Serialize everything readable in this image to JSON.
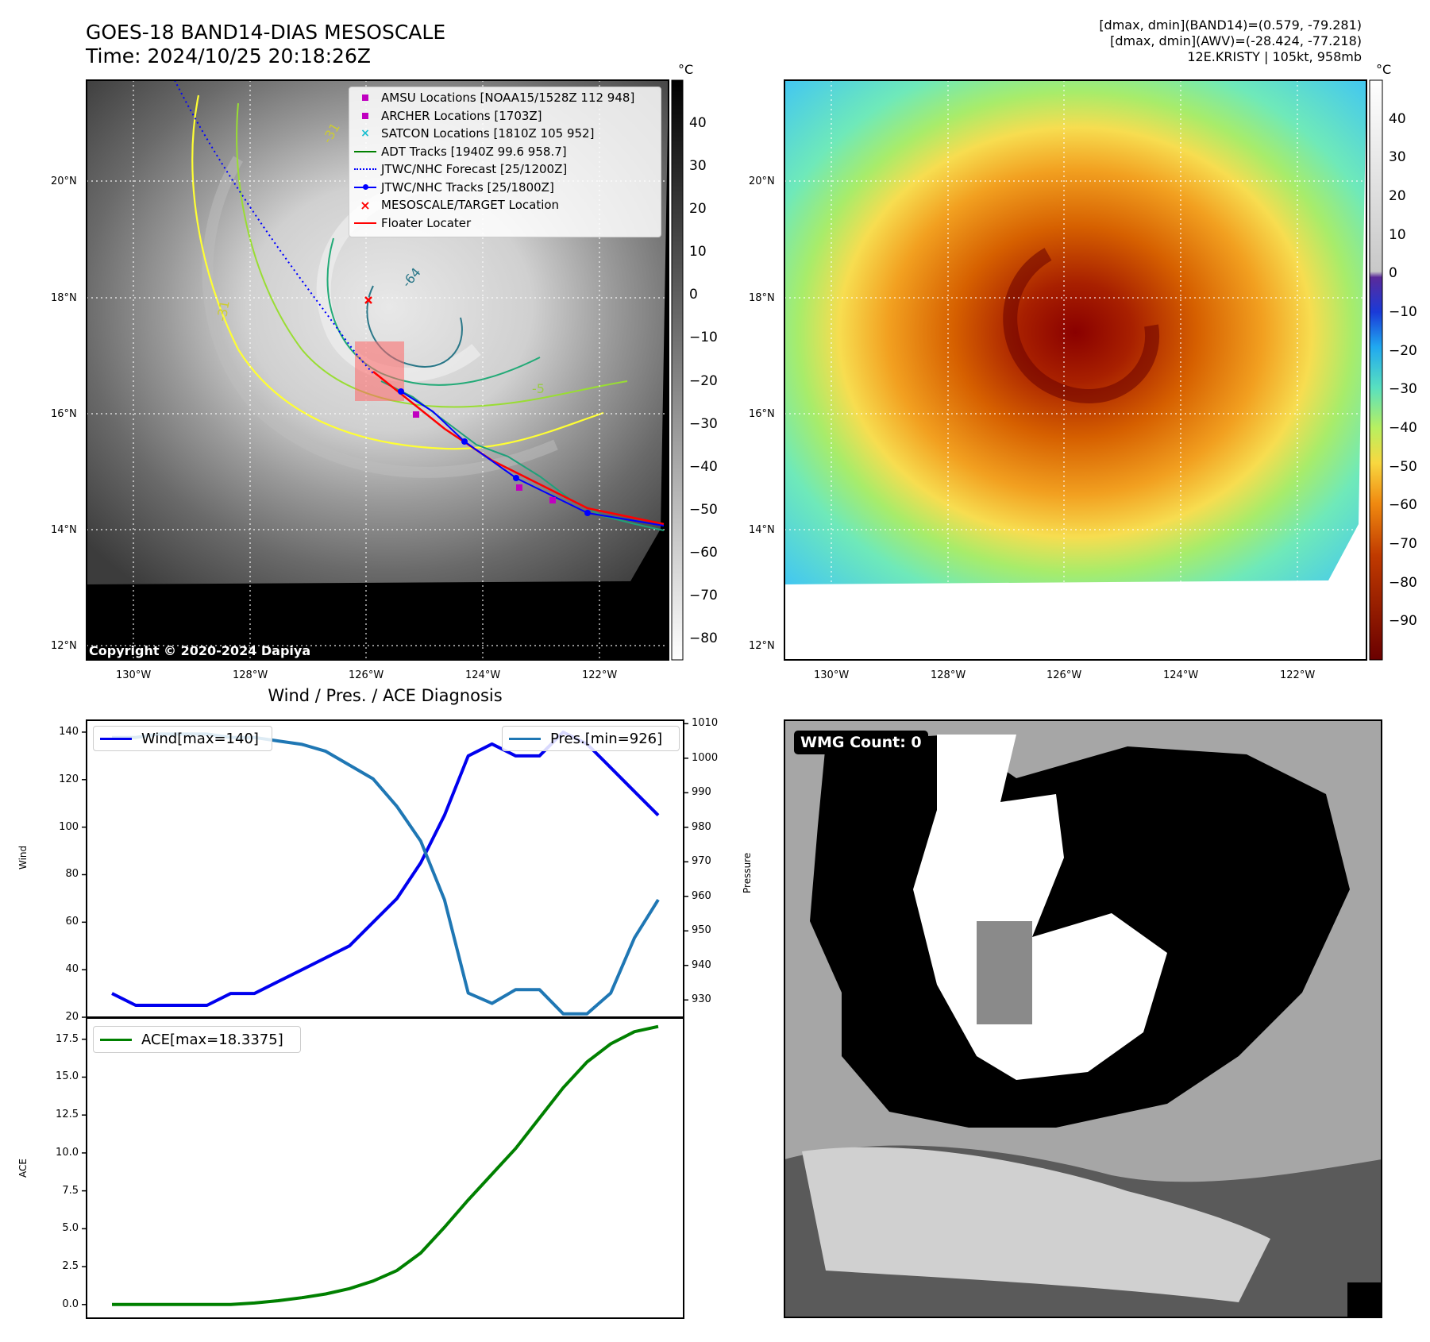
{
  "header": {
    "title_line1": "GOES-18 BAND14-DIAS MESOSCALE",
    "title_line2": "Time: 2024/10/25 20:18:26Z",
    "info_line1": "[dmax, dmin](BAND14)=(0.579, -79.281)",
    "info_line2": "[dmax, dmin](AWV)=(-28.424, -77.218)",
    "info_line3": "12E.KRISTY | 105kt, 958mb"
  },
  "map": {
    "lat_labels": [
      "20°N",
      "18°N",
      "16°N",
      "14°N",
      "12°N"
    ],
    "lon_labels": [
      "130°W",
      "128°W",
      "126°W",
      "124°W",
      "122°W"
    ],
    "copyright": "Copyright © 2020-2024 Dapiya",
    "contour_labels": [
      "-31",
      "-64",
      "-31",
      "-31",
      "-5"
    ],
    "legend": [
      {
        "label": "AMSU Locations [NOAA15/1528Z 112 948]",
        "symbol": "square",
        "color": "#c000c0"
      },
      {
        "label": "ARCHER Locations [1703Z]",
        "symbol": "square",
        "color": "#c000c0"
      },
      {
        "label": "SATCON Locations [1810Z 105 952]",
        "symbol": "x",
        "color": "#17becf"
      },
      {
        "label": "ADT Tracks [1940Z 99.6 958.7]",
        "symbol": "line",
        "color": "#008000"
      },
      {
        "label": "JTWC/NHC Forecast [25/1200Z]",
        "symbol": "dotted",
        "color": "#0000ff"
      },
      {
        "label": "JTWC/NHC Tracks [25/1800Z]",
        "symbol": "line-dot",
        "color": "#0000ff"
      },
      {
        "label": "MESOSCALE/TARGET Location",
        "symbol": "x",
        "color": "#ff0000"
      },
      {
        "label": "Floater Locater",
        "symbol": "line",
        "color": "#ff0000"
      }
    ]
  },
  "colorbar_gray": {
    "unit": "°C",
    "ticks": [
      "40",
      "30",
      "20",
      "10",
      "0",
      "−10",
      "−20",
      "−30",
      "−40",
      "−50",
      "−60",
      "−70",
      "−80"
    ]
  },
  "colorbar_color": {
    "unit": "°C",
    "ticks": [
      "40",
      "30",
      "20",
      "10",
      "0",
      "−10",
      "−20",
      "−30",
      "−40",
      "−50",
      "−60",
      "−70",
      "−80",
      "−90"
    ]
  },
  "wmg": {
    "label": "WMG Count: 0"
  },
  "chart_data": [
    {
      "type": "line",
      "title": "Wind / Pres. / ACE Diagnosis",
      "ylabel": "Wind",
      "ylabel_right": "Pressure",
      "ylim": [
        20,
        145
      ],
      "ylim_right": [
        925,
        1011
      ],
      "yticks": [
        20,
        40,
        60,
        80,
        100,
        120,
        140
      ],
      "yticks_right": [
        930,
        940,
        950,
        960,
        970,
        980,
        990,
        1000,
        1010
      ],
      "x": [
        0,
        1,
        2,
        3,
        4,
        5,
        6,
        7,
        8,
        9,
        10,
        11,
        12,
        13,
        14,
        15,
        16,
        17,
        18,
        19,
        20,
        21,
        22,
        23
      ],
      "series": [
        {
          "name": "Wind[max=140]",
          "color": "#0000ee",
          "axis": "left",
          "values": [
            30,
            25,
            25,
            25,
            25,
            30,
            30,
            35,
            40,
            45,
            50,
            60,
            70,
            85,
            105,
            130,
            135,
            130,
            130,
            140,
            135,
            125,
            115,
            105
          ]
        },
        {
          "name": "Pres.[min=926]",
          "color": "#1f77b4",
          "axis": "right",
          "values": [
            1006,
            1006,
            1007,
            1007,
            1007,
            1006,
            1006,
            1005,
            1004,
            1002,
            998,
            994,
            986,
            976,
            959,
            932,
            929,
            933,
            933,
            926,
            926,
            932,
            948,
            959
          ]
        }
      ]
    },
    {
      "type": "line",
      "ylabel": "ACE",
      "ylim": [
        -0.9,
        18.9
      ],
      "yticks": [
        0.0,
        2.5,
        5.0,
        7.5,
        10.0,
        12.5,
        15.0,
        17.5
      ],
      "ytick_labels": [
        "0.0",
        "2.5",
        "5.0",
        "7.5",
        "10.0",
        "12.5",
        "15.0",
        "17.5"
      ],
      "x": [
        0,
        1,
        2,
        3,
        4,
        5,
        6,
        7,
        8,
        9,
        10,
        11,
        12,
        13,
        14,
        15,
        16,
        17,
        18,
        19,
        20,
        21,
        22,
        23
      ],
      "series": [
        {
          "name": "ACE[max=18.3375]",
          "color": "#008000",
          "values": [
            0,
            0,
            0,
            0,
            0,
            0,
            0.1,
            0.25,
            0.45,
            0.7,
            1.05,
            1.55,
            2.25,
            3.4,
            5.1,
            6.9,
            8.6,
            10.3,
            12.3,
            14.3,
            16.0,
            17.2,
            18.0,
            18.3375
          ]
        }
      ]
    }
  ]
}
